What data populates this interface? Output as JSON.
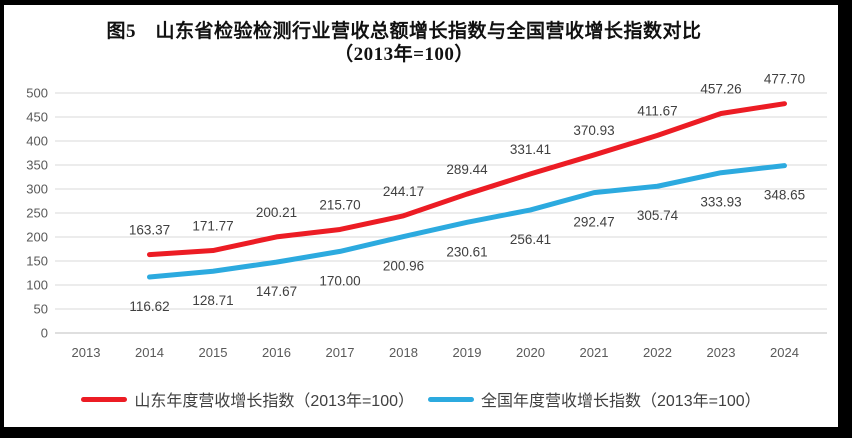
{
  "figure": {
    "title_line1": "图5　山东省检验检测行业营收总额增长指数与全国营收增长指数对比",
    "title_line2": "（2013年=100）"
  },
  "colors": {
    "shandong_red": "#EC1C24",
    "national_blue": "#2CAADF",
    "gridline": "#D9D9D9",
    "axis_line": "#BFBFBF",
    "tick_label": "#595959",
    "data_label": "#404040"
  },
  "chart_data": {
    "type": "line",
    "categories": [
      "2013",
      "2014",
      "2015",
      "2016",
      "2017",
      "2018",
      "2019",
      "2020",
      "2021",
      "2022",
      "2023",
      "2024"
    ],
    "series": [
      {
        "name": "山东年度营收增长指数（2013年=100）",
        "color": "#EC1C24",
        "values": [
          null,
          163.37,
          171.77,
          200.21,
          215.7,
          244.17,
          289.44,
          331.41,
          370.93,
          411.67,
          457.26,
          477.7
        ]
      },
      {
        "name": "全国年度营收增长指数（2013年=100）",
        "color": "#2CAADF",
        "values": [
          null,
          116.62,
          128.71,
          147.67,
          170.0,
          200.96,
          230.61,
          256.41,
          292.47,
          305.74,
          333.93,
          348.65
        ]
      }
    ],
    "title": "图5　山东省检验检测行业营收总额增长指数与全国营收增长指数对比（2013年=100）",
    "xlabel": "",
    "ylabel": "",
    "ylim": [
      0,
      500
    ],
    "ytick_step": 50,
    "grid": true,
    "legend_position": "bottom",
    "value_label_decimals": 2
  }
}
